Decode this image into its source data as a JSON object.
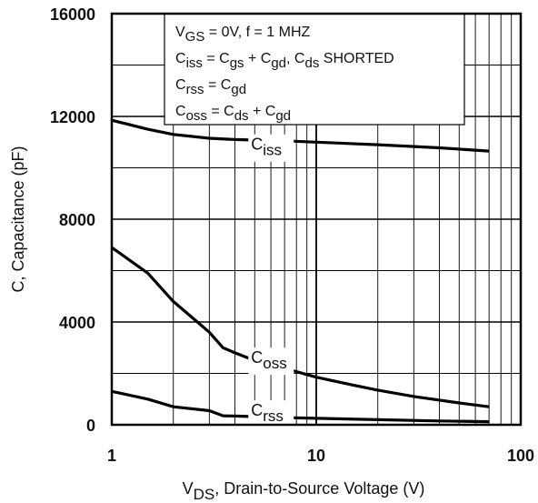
{
  "chart_data": {
    "type": "line",
    "x_scale": "log",
    "xlim": [
      1,
      100
    ],
    "ylim": [
      0,
      16000
    ],
    "grid": true,
    "x_ticks": [
      {
        "value": 1,
        "label": "1"
      },
      {
        "value": 10,
        "label": "10"
      },
      {
        "value": 100,
        "label": "100"
      }
    ],
    "y_ticks": [
      {
        "value": 0,
        "label": "0"
      },
      {
        "value": 4000,
        "label": "4000"
      },
      {
        "value": 8000,
        "label": "8000"
      },
      {
        "value": 12000,
        "label": "12000"
      },
      {
        "value": 16000,
        "label": "16000"
      }
    ],
    "ylabel": "C, Capacitance (pF)",
    "xlabel": {
      "main": "V",
      "sub": "DS",
      "rest": ", Drain-to-Source Voltage (V)"
    },
    "legend_placement": "top-center",
    "legend_lines": [
      [
        {
          "t": "V"
        },
        {
          "t": "GS",
          "sub": true
        },
        {
          "t": "  = 0V,        f = 1 MHZ"
        }
      ],
      [
        {
          "t": "C"
        },
        {
          "t": "iss",
          "sub": true
        },
        {
          "t": "  = C"
        },
        {
          "t": "gs",
          "sub": true
        },
        {
          "t": " + C"
        },
        {
          "t": "gd",
          "sub": true
        },
        {
          "t": ",  C"
        },
        {
          "t": "ds",
          "sub": true
        },
        {
          "t": " SHORTED"
        }
      ],
      [
        {
          "t": "C"
        },
        {
          "t": "rss",
          "sub": true
        },
        {
          "t": "  = C"
        },
        {
          "t": "gd",
          "sub": true
        }
      ],
      [
        {
          "t": "C"
        },
        {
          "t": "oss",
          "sub": true
        },
        {
          "t": "  = C"
        },
        {
          "t": "ds",
          "sub": true
        },
        {
          "t": " + C"
        },
        {
          "t": "gd",
          "sub": true
        }
      ]
    ],
    "series": [
      {
        "name": "Ciss",
        "label": {
          "main": "C",
          "sub": "iss",
          "x": 4.8,
          "y": 10700
        },
        "points": [
          [
            1,
            11850
          ],
          [
            1.5,
            11500
          ],
          [
            2,
            11300
          ],
          [
            3,
            11150
          ],
          [
            4,
            11100
          ],
          [
            5,
            11080
          ],
          [
            7,
            11050
          ],
          [
            10,
            11000
          ],
          [
            20,
            10900
          ],
          [
            40,
            10780
          ],
          [
            70,
            10650
          ]
        ]
      },
      {
        "name": "Coss",
        "label": {
          "main": "C",
          "sub": "oss",
          "x": 4.8,
          "y": 2400
        },
        "points": [
          [
            1,
            6900
          ],
          [
            1.5,
            5900
          ],
          [
            2,
            4800
          ],
          [
            3,
            3600
          ],
          [
            3.5,
            3000
          ],
          [
            4,
            2800
          ],
          [
            5,
            2500
          ],
          [
            7,
            2200
          ],
          [
            10,
            1850
          ],
          [
            15,
            1550
          ],
          [
            20,
            1350
          ],
          [
            30,
            1100
          ],
          [
            50,
            850
          ],
          [
            70,
            700
          ]
        ]
      },
      {
        "name": "Crss",
        "label": {
          "main": "C",
          "sub": "rss",
          "x": 4.8,
          "y": 350
        },
        "points": [
          [
            1,
            1300
          ],
          [
            1.5,
            1000
          ],
          [
            2,
            700
          ],
          [
            3,
            550
          ],
          [
            3.5,
            350
          ],
          [
            4,
            340
          ],
          [
            7,
            280
          ],
          [
            10,
            250
          ],
          [
            20,
            200
          ],
          [
            40,
            150
          ],
          [
            70,
            120
          ]
        ]
      }
    ]
  }
}
